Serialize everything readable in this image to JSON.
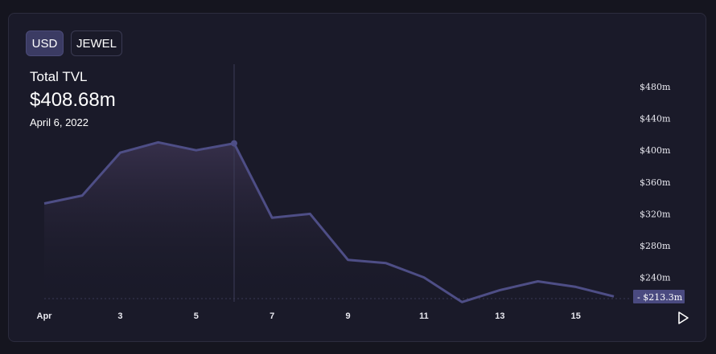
{
  "toggles": {
    "usd_label": "USD",
    "jewel_label": "JEWEL"
  },
  "header": {
    "title": "Total TVL",
    "value": "$408.68m",
    "date": "April 6, 2022"
  },
  "colors": {
    "line": "#4e4e86",
    "fill_top": "#3b3350",
    "axis_text": "#e8e8ef",
    "current_badge": "#4a4a80"
  },
  "chart_data": {
    "type": "area",
    "ylabel": "",
    "xlabel": "",
    "x_ticks": [
      "Apr",
      "3",
      "5",
      "7",
      "9",
      "11",
      "13",
      "15"
    ],
    "y_ticks": [
      "$240m",
      "$280m",
      "$320m",
      "$360m",
      "$400m",
      "$440m",
      "$480m"
    ],
    "ylim": [
      213.3,
      480
    ],
    "series": [
      {
        "x": [
          1,
          2,
          3,
          4,
          5,
          6,
          7,
          8,
          9,
          10,
          11,
          12,
          13,
          14,
          15,
          16
        ],
        "values": [
          333,
          343,
          397,
          410,
          400,
          408.68,
          315,
          320,
          262,
          258,
          240,
          209,
          224,
          235,
          228,
          216
        ]
      }
    ],
    "highlight": {
      "x": 6,
      "value": 408.68
    },
    "current_value_label": "$213.3m",
    "current_value": 213.3
  },
  "icons": {
    "play": "play-icon"
  }
}
